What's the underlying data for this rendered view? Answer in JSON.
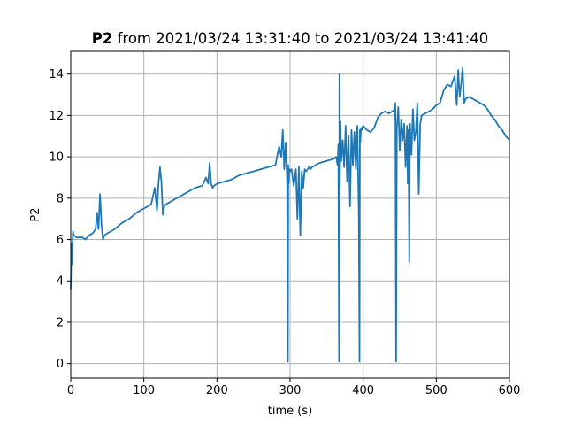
{
  "chart_data": {
    "type": "line",
    "title_bold": "P2",
    "title_rest": " from 2021/03/24 13:31:40 to 2021/03/24 13:41:40",
    "xlabel": "time (s)",
    "ylabel": "P2",
    "xlim": [
      0,
      600
    ],
    "ylim": [
      -0.7,
      15.1
    ],
    "xticks": [
      0,
      100,
      200,
      300,
      400,
      500,
      600
    ],
    "yticks": [
      0,
      2,
      4,
      6,
      8,
      10,
      12,
      14
    ],
    "grid": true,
    "series": [
      {
        "color": "#1f77b4",
        "x": [
          0,
          1,
          2,
          3,
          4,
          5,
          8,
          12,
          16,
          20,
          25,
          30,
          34,
          36,
          38,
          40,
          42,
          44,
          46,
          50,
          60,
          70,
          80,
          90,
          100,
          110,
          115,
          118,
          120,
          122,
          124,
          126,
          128,
          130,
          140,
          150,
          160,
          170,
          180,
          185,
          188,
          190,
          192,
          194,
          196,
          200,
          210,
          220,
          230,
          240,
          250,
          260,
          270,
          280,
          285,
          288,
          290,
          292,
          294,
          296,
          297,
          297.5,
          298,
          299,
          300,
          302,
          305,
          308,
          310,
          312,
          314,
          316,
          318,
          320,
          322,
          324,
          326,
          328,
          330,
          340,
          350,
          360,
          363,
          365,
          366,
          367,
          367.5,
          368,
          369,
          370,
          372,
          374,
          376,
          378,
          380,
          382,
          384,
          386,
          388,
          390,
          392,
          394,
          395,
          395.5,
          396,
          397,
          398,
          400,
          405,
          410,
          415,
          420,
          425,
          430,
          435,
          440,
          443,
          443.5,
          444,
          445,
          446,
          448,
          450,
          452,
          454,
          456,
          458,
          460,
          461,
          462,
          463,
          464,
          466,
          468,
          470,
          472,
          474,
          476,
          478,
          480,
          485,
          490,
          495,
          500,
          505,
          510,
          515,
          520,
          525,
          528,
          530,
          532,
          534,
          536,
          538,
          540,
          545,
          550,
          555,
          560,
          565,
          570,
          575,
          580,
          585,
          590,
          595,
          600
        ],
        "y": [
          3.6,
          5.8,
          4.8,
          6.4,
          6.2,
          6.2,
          6.1,
          6.1,
          6.1,
          6.0,
          6.2,
          6.3,
          6.5,
          7.3,
          6.5,
          8.2,
          6.8,
          6.0,
          6.2,
          6.3,
          6.5,
          6.8,
          7.0,
          7.3,
          7.5,
          7.7,
          8.5,
          7.4,
          8.7,
          9.5,
          8.8,
          7.2,
          7.6,
          7.7,
          7.9,
          8.1,
          8.3,
          8.5,
          8.6,
          9.0,
          8.7,
          9.7,
          8.7,
          8.5,
          8.6,
          8.7,
          8.8,
          8.9,
          9.1,
          9.2,
          9.3,
          9.4,
          9.5,
          9.6,
          10.5,
          10.0,
          11.3,
          9.4,
          10.7,
          8.8,
          0.1,
          9.6,
          8.7,
          9.4,
          9.3,
          9.4,
          8.6,
          9.4,
          7.0,
          9.5,
          6.2,
          9.3,
          8.5,
          9.4,
          9.3,
          9.4,
          9.5,
          9.4,
          9.5,
          9.7,
          9.8,
          9.9,
          10.0,
          9.6,
          10.6,
          0.1,
          14.0,
          8.5,
          11.7,
          9.8,
          10.8,
          9.5,
          11.5,
          8.8,
          11.0,
          7.6,
          11.3,
          9.6,
          11.2,
          9.4,
          11.5,
          7.2,
          0.1,
          11.3,
          10.7,
          11.4,
          11.3,
          11.5,
          11.3,
          11.2,
          11.4,
          11.9,
          12.1,
          12.2,
          12.1,
          12.2,
          12.3,
          11.8,
          12.6,
          0.1,
          11.4,
          12.4,
          10.3,
          11.8,
          10.8,
          11.6,
          9.5,
          11.5,
          8.7,
          11.3,
          4.9,
          11.6,
          10.1,
          12.3,
          10.8,
          11.2,
          12.6,
          8.2,
          11.6,
          12.0,
          12.1,
          12.2,
          12.3,
          12.5,
          12.6,
          13.2,
          13.5,
          13.4,
          13.9,
          12.5,
          14.2,
          12.9,
          13.5,
          14.3,
          12.6,
          12.8,
          12.9,
          12.8,
          12.7,
          12.6,
          12.5,
          12.3,
          12.0,
          11.8,
          11.5,
          11.3,
          11.0,
          10.8
        ]
      }
    ]
  }
}
